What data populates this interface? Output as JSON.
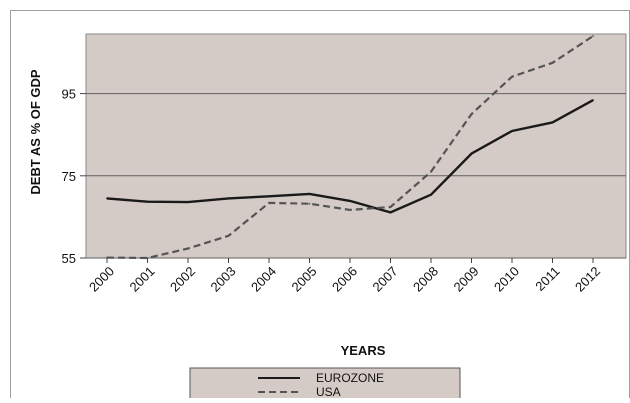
{
  "chart_data": {
    "type": "line",
    "x": [
      "2000",
      "2001",
      "2002",
      "2003",
      "2004",
      "2005",
      "2006",
      "2007",
      "2008",
      "2009",
      "2010",
      "2011",
      "2012"
    ],
    "series": [
      {
        "name": "EUROZONE",
        "color": "#1a1a1a",
        "dash": "solid",
        "values": [
          69.5,
          68.7,
          68.6,
          69.5,
          70.0,
          70.6,
          68.9,
          66.1,
          70.4,
          80.4,
          85.9,
          88.0,
          93.4
        ]
      },
      {
        "name": "USA",
        "color": "#555555",
        "dash": "dashed",
        "values": [
          55.1,
          55.0,
          57.3,
          60.4,
          68.4,
          68.2,
          66.7,
          67.4,
          76.0,
          90.0,
          99.1,
          102.5,
          109.0
        ]
      }
    ],
    "xlabel": "YEARS",
    "ylabel": "DEBT AS % OF GDP",
    "yticks": [
      "55",
      "75",
      "95"
    ],
    "ylim": [
      55,
      109.5
    ],
    "grid": "horizontal",
    "legend": "bottom",
    "plot_background": "#d4cbc6",
    "grid_color": "#606060"
  }
}
